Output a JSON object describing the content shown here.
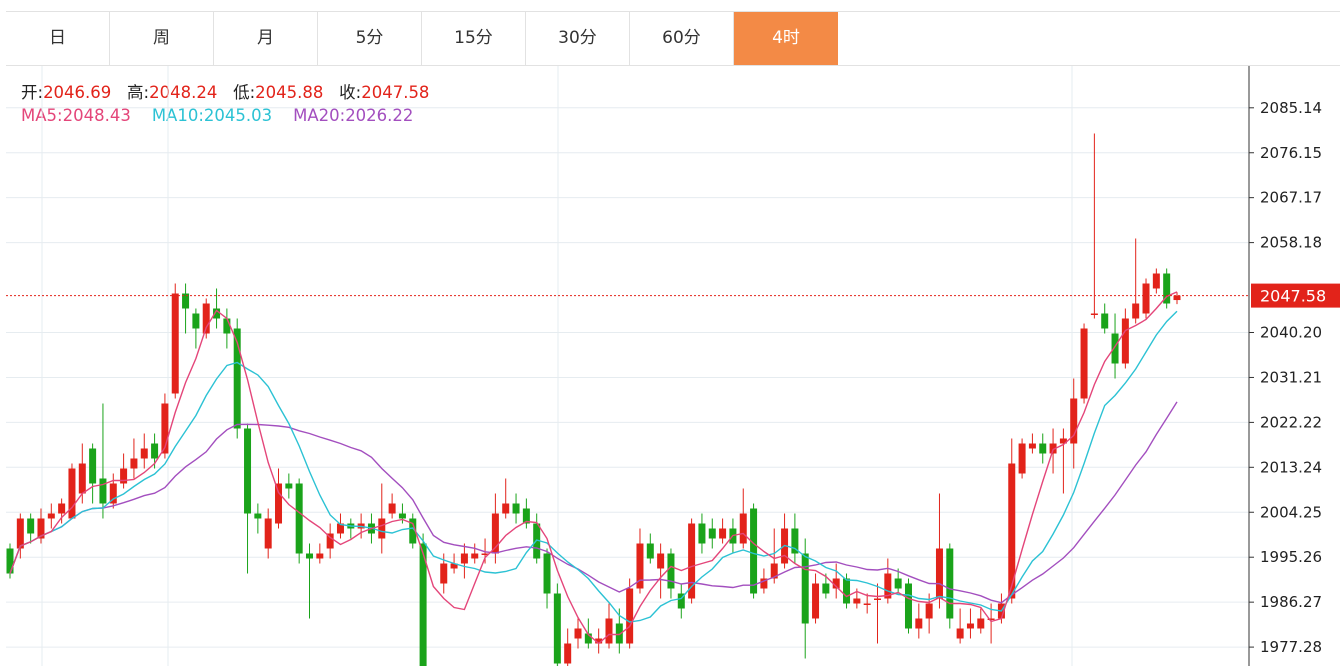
{
  "tabs": [
    {
      "label": "日",
      "active": false
    },
    {
      "label": "周",
      "active": false
    },
    {
      "label": "月",
      "active": false
    },
    {
      "label": "5分",
      "active": false
    },
    {
      "label": "15分",
      "active": false
    },
    {
      "label": "30分",
      "active": false
    },
    {
      "label": "60分",
      "active": false
    },
    {
      "label": "4时",
      "active": true
    }
  ],
  "ohlc_info": {
    "open_label": "开:",
    "open": "2046.69",
    "high_label": "高:",
    "high": "2048.24",
    "low_label": "低:",
    "low": "2045.88",
    "close_label": "收:",
    "close": "2047.58"
  },
  "ma_info": {
    "ma5_label": "MA5:",
    "ma5": "2048.43",
    "ma10_label": "MA10:",
    "ma10": "2045.03",
    "ma20_label": "MA20:",
    "ma20": "2026.22"
  },
  "colors": {
    "up": "#e2231a",
    "down": "#1aa31a",
    "ma5": "#e4467a",
    "ma10": "#2cc2d4",
    "ma20": "#a34fbf",
    "accent": "#f38a46"
  },
  "chart_data": {
    "type": "candlestick",
    "y_ticks": [
      "2085.14",
      "2076.15",
      "2067.17",
      "2058.18",
      "2040.20",
      "2031.21",
      "2022.22",
      "2013.24",
      "2004.25",
      "1995.26",
      "1986.27",
      "1977.28"
    ],
    "y_tick_values": [
      2085.14,
      2076.15,
      2067.17,
      2058.18,
      2040.2,
      2031.21,
      2022.22,
      2013.24,
      2004.25,
      1995.26,
      1986.27,
      1977.28
    ],
    "ylim": [
      1973.5,
      2093.5
    ],
    "last_price": 2047.58,
    "last_price_label": "2047.58",
    "candles": [
      [
        1997,
        1992,
        1998,
        1991
      ],
      [
        1997,
        2003,
        2004,
        1995
      ],
      [
        2003,
        2000,
        2004,
        1998
      ],
      [
        1999,
        2003,
        2005,
        1998
      ],
      [
        2003,
        2004,
        2006,
        2001
      ],
      [
        2004,
        2006,
        2007,
        2002
      ],
      [
        2003,
        2013,
        2014,
        2003
      ],
      [
        2008,
        2014,
        2018,
        2006
      ],
      [
        2017,
        2010,
        2018,
        2006
      ],
      [
        2011,
        2006,
        2026,
        2003
      ],
      [
        2006,
        2010,
        2012,
        2005
      ],
      [
        2010,
        2013,
        2016,
        2009
      ],
      [
        2013,
        2015,
        2019,
        2011
      ],
      [
        2015,
        2017,
        2020,
        2013
      ],
      [
        2018,
        2015,
        2020,
        2013
      ],
      [
        2016,
        2026,
        2028,
        2015
      ],
      [
        2028,
        2048,
        2050,
        2027
      ],
      [
        2048,
        2045,
        2050,
        2040
      ],
      [
        2044,
        2041,
        2045,
        2037
      ],
      [
        2040,
        2046,
        2047,
        2039
      ],
      [
        2045,
        2043,
        2049,
        2041
      ],
      [
        2043,
        2040,
        2045,
        2037
      ],
      [
        2041,
        2021,
        2043,
        2019
      ],
      [
        2021,
        2004,
        2022,
        1992
      ],
      [
        2004,
        2003,
        2006,
        2000
      ],
      [
        1997,
        2003,
        2005,
        1995
      ],
      [
        2002,
        2010,
        2013,
        2001
      ],
      [
        2010,
        2009,
        2012,
        2007
      ],
      [
        2010,
        1996,
        2011,
        1994
      ],
      [
        1996,
        1995,
        1998,
        1983
      ],
      [
        1995,
        1996,
        1998,
        1994
      ],
      [
        1997,
        2000,
        2002,
        1995
      ],
      [
        2000,
        2002,
        2004,
        1999
      ],
      [
        2002,
        2001,
        2003,
        1999
      ],
      [
        2001,
        2002,
        2004,
        1999
      ],
      [
        2002,
        2000,
        2004,
        1998
      ],
      [
        1999,
        2003,
        2010,
        1996
      ],
      [
        2004,
        2006,
        2008,
        2003
      ],
      [
        2004,
        2003,
        2006,
        2002
      ],
      [
        2003,
        1998,
        2004,
        1997
      ],
      [
        1998,
        1970,
        2000,
        1968
      ],
      [
        1970,
        1970,
        1972,
        1966
      ],
      [
        1990,
        1994,
        1996,
        1988
      ],
      [
        1993,
        1994,
        1996,
        1992
      ],
      [
        1994,
        1996,
        1998,
        1991
      ],
      [
        1995,
        1996,
        1998,
        1994
      ],
      [
        1996,
        1996,
        1999,
        1994
      ],
      [
        1996,
        2004,
        2008,
        1994
      ],
      [
        2004,
        2006,
        2011,
        2003
      ],
      [
        2006,
        2004,
        2008,
        2002
      ],
      [
        2005,
        2002,
        2007,
        2001
      ],
      [
        2002,
        1995,
        2004,
        1994
      ],
      [
        1996,
        1988,
        1997,
        1985
      ],
      [
        1988,
        1974,
        1990,
        1972
      ],
      [
        1974,
        1978,
        1981,
        1972
      ],
      [
        1979,
        1981,
        1983,
        1977
      ],
      [
        1980,
        1978,
        1983,
        1977
      ],
      [
        1978,
        1979,
        1981,
        1976
      ],
      [
        1978,
        1983,
        1986,
        1977
      ],
      [
        1982,
        1978,
        1985,
        1976
      ],
      [
        1978,
        1989,
        1991,
        1977
      ],
      [
        1989,
        1998,
        2001,
        1988
      ],
      [
        1998,
        1995,
        2000,
        1994
      ],
      [
        1993,
        1996,
        1998,
        1987
      ],
      [
        1996,
        1989,
        1997,
        1987
      ],
      [
        1988,
        1985,
        1990,
        1983
      ],
      [
        1987,
        2002,
        2003,
        1986
      ],
      [
        2002,
        1998,
        2004,
        1996
      ],
      [
        2001,
        1999,
        2003,
        1997
      ],
      [
        1999,
        2001,
        2003,
        1998
      ],
      [
        2001,
        1998,
        2003,
        1996
      ],
      [
        1998,
        2004,
        2009,
        1997
      ],
      [
        2005,
        1988,
        2006,
        1987
      ],
      [
        1989,
        1991,
        1993,
        1988
      ],
      [
        1991,
        1994,
        2001,
        1990
      ],
      [
        1994,
        2001,
        2004,
        1993
      ],
      [
        2001,
        1996,
        2004,
        1994
      ],
      [
        1996,
        1982,
        1999,
        1975
      ],
      [
        1983,
        1990,
        1992,
        1982
      ],
      [
        1990,
        1988,
        1992,
        1987
      ],
      [
        1989,
        1991,
        1994,
        1987
      ],
      [
        1991,
        1986,
        1992,
        1985
      ],
      [
        1986,
        1987,
        1989,
        1985
      ],
      [
        1986,
        1986,
        1988,
        1984
      ],
      [
        1987,
        1987,
        1990,
        1978
      ],
      [
        1987,
        1992,
        1995,
        1986
      ],
      [
        1991,
        1989,
        1993,
        1988
      ],
      [
        1990,
        1981,
        1991,
        1980
      ],
      [
        1981,
        1983,
        1986,
        1979
      ],
      [
        1983,
        1986,
        1988,
        1980
      ],
      [
        1987,
        1997,
        2008,
        1985
      ],
      [
        1997,
        1983,
        1998,
        1981
      ],
      [
        1979,
        1981,
        1985,
        1978
      ],
      [
        1981,
        1982,
        1985,
        1979
      ],
      [
        1981,
        1983,
        1985,
        1980
      ],
      [
        1983,
        1983,
        1986,
        1978
      ],
      [
        1983,
        1986,
        1988,
        1982
      ],
      [
        1987,
        2014,
        2019,
        1986
      ],
      [
        2012,
        2018,
        2019,
        2011
      ],
      [
        2017,
        2018,
        2020,
        2016
      ],
      [
        2018,
        2016,
        2020,
        2014
      ],
      [
        2016,
        2018,
        2021,
        2012
      ],
      [
        2018,
        2019,
        2021,
        2008
      ],
      [
        2018,
        2027,
        2031,
        2013
      ],
      [
        2027,
        2041,
        2042,
        2026
      ],
      [
        2044,
        2044,
        2080,
        2043
      ],
      [
        2044,
        2041,
        2046,
        2040
      ],
      [
        2040,
        2034,
        2044,
        2031
      ],
      [
        2034,
        2043,
        2045,
        2033
      ],
      [
        2043,
        2046,
        2059,
        2042
      ],
      [
        2044,
        2050,
        2051,
        2043
      ],
      [
        2049,
        2052,
        2053,
        2048
      ],
      [
        2052,
        2046,
        2053,
        2045
      ],
      [
        2046.69,
        2047.58,
        2048.24,
        2045.88
      ]
    ]
  }
}
